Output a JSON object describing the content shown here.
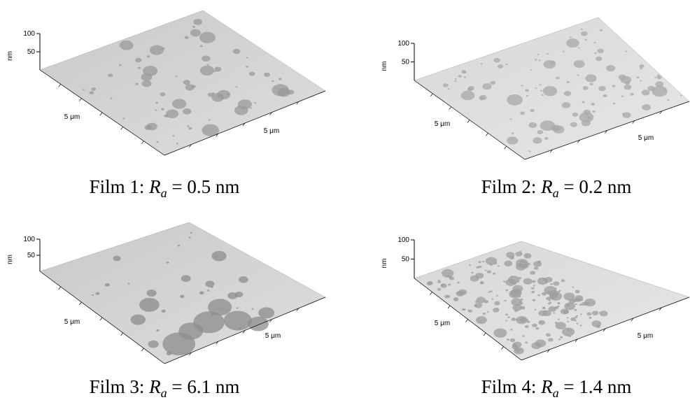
{
  "panels": [
    {
      "z_ticks": [
        100,
        50
      ],
      "z_unit": "nm",
      "x_label": "5 μm",
      "y_label": "5 μm",
      "caption": {
        "prefix": "Film 1: ",
        "symbol": "R",
        "subscript": "a",
        "rest": " = 0.5 nm"
      }
    },
    {
      "z_ticks": [
        100,
        50
      ],
      "z_unit": "nm",
      "x_label": "5 μm",
      "y_label": "5 μm",
      "caption": {
        "prefix": "Film 2: ",
        "symbol": "R",
        "subscript": "a",
        "rest": " = 0.2 nm"
      }
    },
    {
      "z_ticks": [
        100,
        50
      ],
      "z_unit": "nm",
      "x_label": "5 μm",
      "y_label": "5 μm",
      "caption": {
        "prefix": "Film 3: ",
        "symbol": "R",
        "subscript": "a",
        "rest": " = 6.1 nm"
      }
    },
    {
      "z_ticks": [
        100,
        50
      ],
      "z_unit": "nm",
      "x_label": "5 μm",
      "y_label": "5 μm",
      "caption": {
        "prefix": "Film 4: ",
        "symbol": "R",
        "subscript": "a",
        "rest": " = 1.4 nm"
      }
    }
  ]
}
